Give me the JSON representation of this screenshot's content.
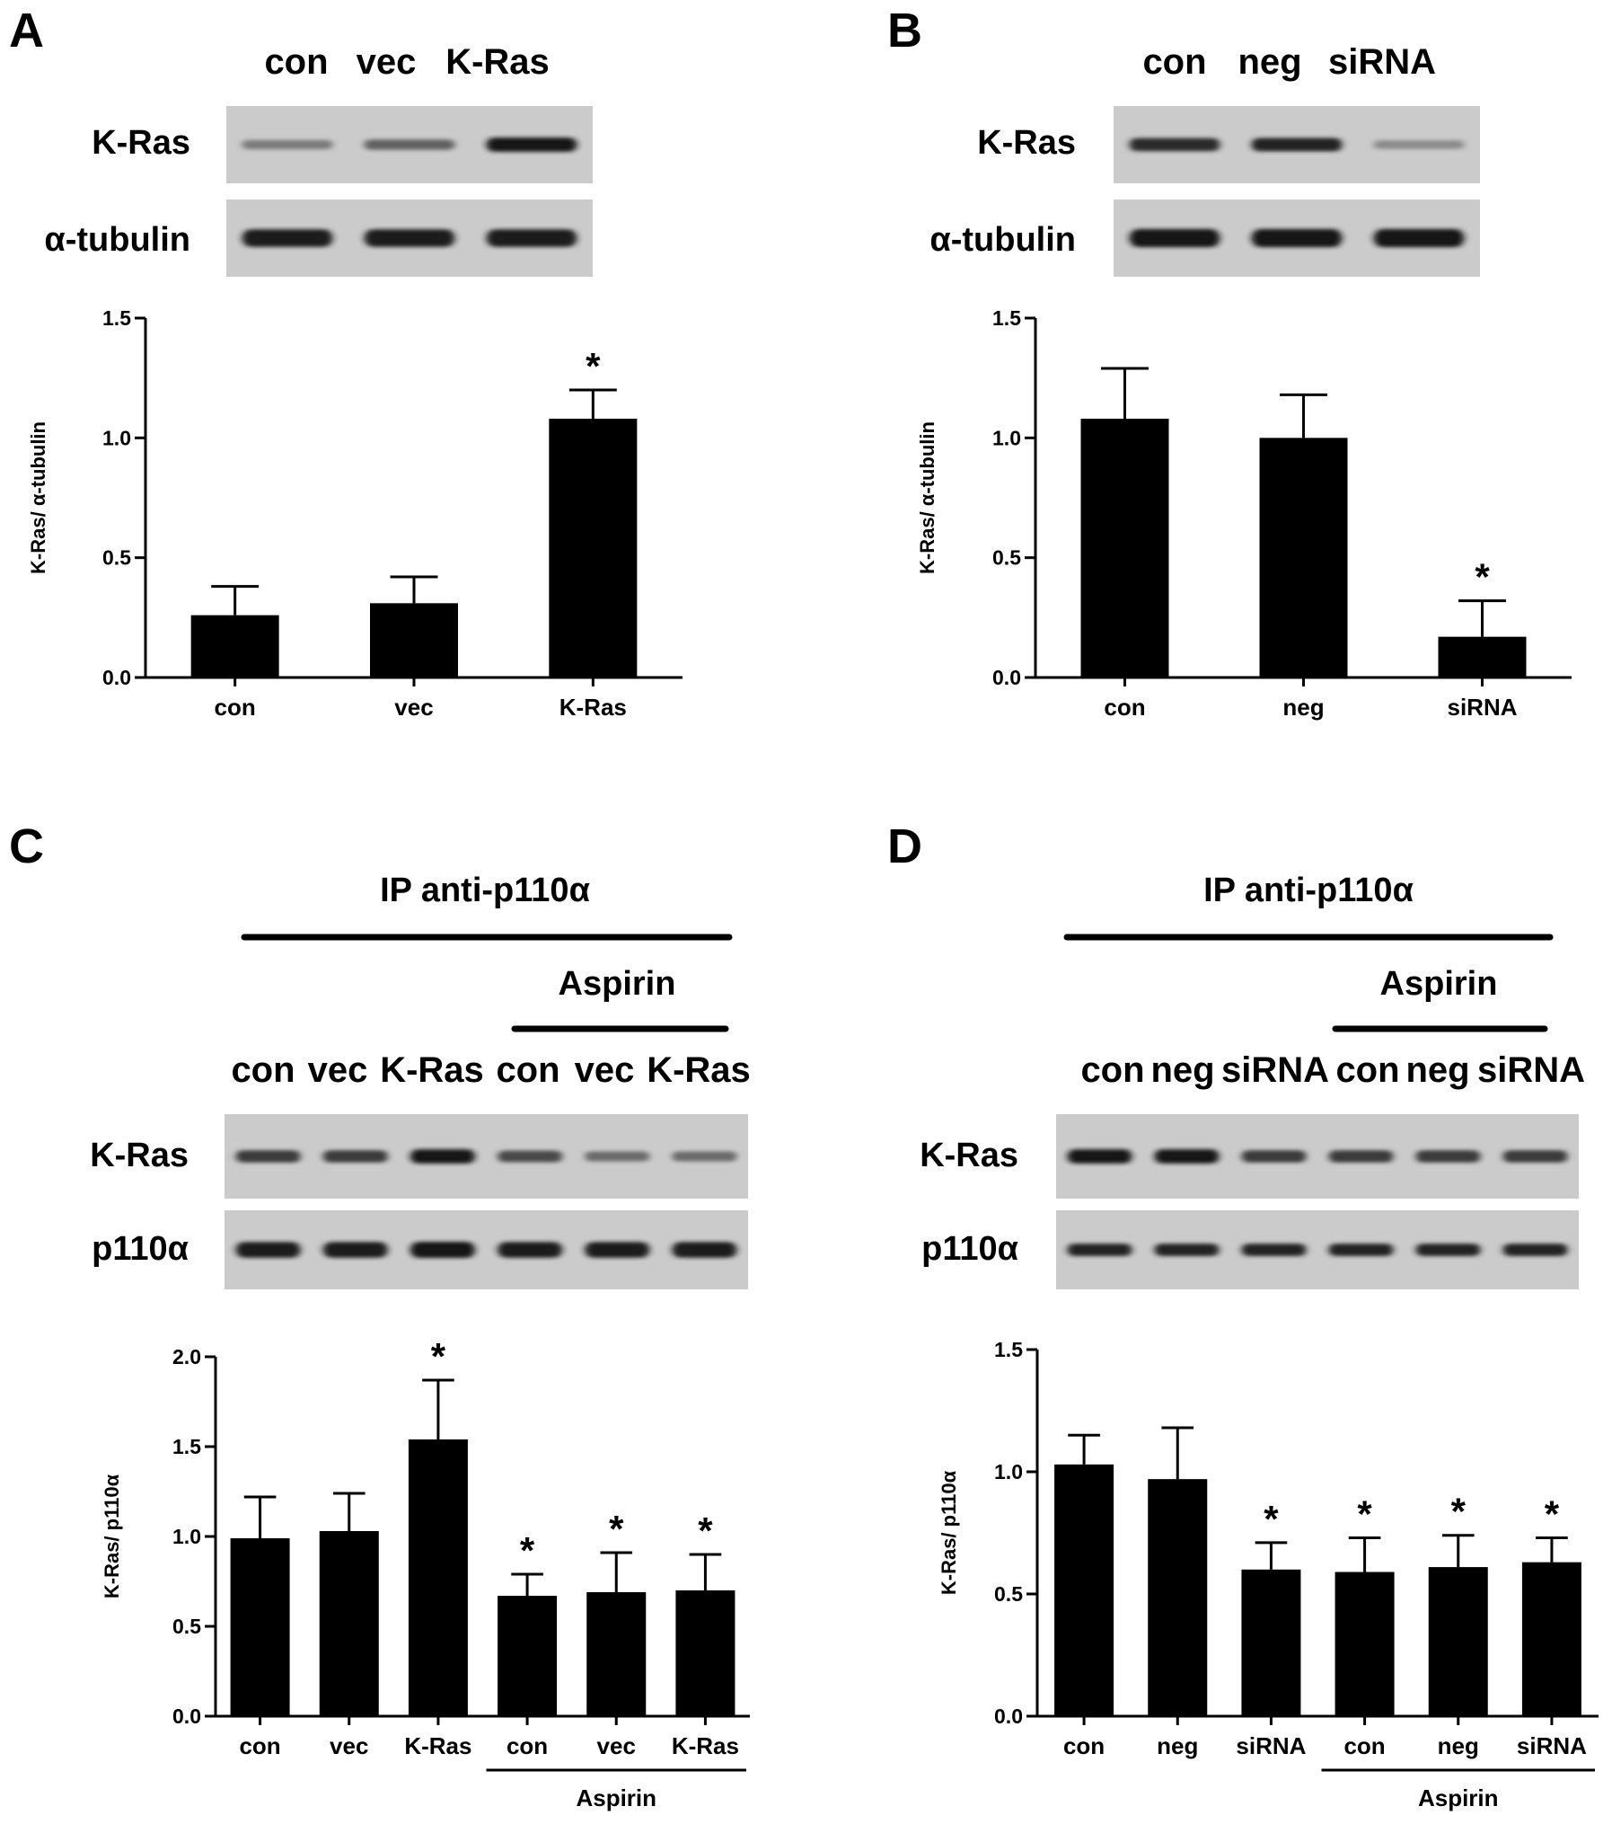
{
  "panels": [
    {
      "id": "A",
      "lanes": [
        "con",
        "vec",
        "K-Ras"
      ],
      "blots": [
        {
          "label": "K-Ras",
          "intensity": [
            0.3,
            0.45,
            0.95
          ]
        },
        {
          "label": "α-tubulin",
          "intensity": [
            0.9,
            0.9,
            0.9
          ]
        }
      ]
    },
    {
      "id": "B",
      "lanes": [
        "con",
        "neg",
        "siRNA"
      ],
      "blots": [
        {
          "label": "K-Ras",
          "intensity": [
            0.8,
            0.85,
            0.2
          ]
        },
        {
          "label": "α-tubulin",
          "intensity": [
            0.95,
            0.95,
            0.95
          ]
        }
      ]
    },
    {
      "id": "C",
      "header": "IP anti-p110α",
      "subheader": "Aspirin",
      "lanes": [
        "con",
        "vec",
        "K-Ras",
        "con",
        "vec",
        "K-Ras"
      ],
      "blots": [
        {
          "label": "K-Ras",
          "intensity": [
            0.7,
            0.7,
            0.95,
            0.6,
            0.4,
            0.4
          ]
        },
        {
          "label": "p110α",
          "intensity": [
            0.9,
            0.9,
            0.95,
            0.9,
            0.9,
            0.9
          ]
        }
      ]
    },
    {
      "id": "D",
      "header": "IP anti-p110α",
      "subheader": "Aspirin",
      "lanes": [
        "con",
        "neg",
        "siRNA",
        "con",
        "neg",
        "siRNA"
      ],
      "blots": [
        {
          "label": "K-Ras",
          "intensity": [
            0.95,
            0.95,
            0.7,
            0.7,
            0.7,
            0.7
          ]
        },
        {
          "label": "p110α",
          "intensity": [
            0.85,
            0.85,
            0.85,
            0.85,
            0.85,
            0.85
          ]
        }
      ]
    }
  ],
  "chart_data": [
    {
      "panel": "A",
      "type": "bar",
      "categories": [
        "con",
        "vec",
        "K-Ras"
      ],
      "values": [
        0.26,
        0.31,
        1.08
      ],
      "errors": [
        0.12,
        0.11,
        0.12
      ],
      "significant": [
        false,
        false,
        true
      ],
      "ylabel": "K-Ras/ α-tubulin",
      "ylim": [
        0,
        1.5
      ],
      "yticks": [
        "0.0",
        "0.5",
        "1.0",
        "1.5"
      ],
      "annotation_symbol": "*",
      "group_label": ""
    },
    {
      "panel": "B",
      "type": "bar",
      "categories": [
        "con",
        "neg",
        "siRNA"
      ],
      "values": [
        1.08,
        1.0,
        0.17
      ],
      "errors": [
        0.21,
        0.18,
        0.15
      ],
      "significant": [
        false,
        false,
        true
      ],
      "ylabel": "K-Ras/ α-tubulin",
      "ylim": [
        0,
        1.5
      ],
      "yticks": [
        "0.0",
        "0.5",
        "1.0",
        "1.5"
      ],
      "annotation_symbol": "*",
      "group_label": ""
    },
    {
      "panel": "C",
      "type": "bar",
      "categories": [
        "con",
        "vec",
        "K-Ras",
        "con",
        "vec",
        "K-Ras"
      ],
      "values": [
        0.99,
        1.03,
        1.54,
        0.67,
        0.69,
        0.7
      ],
      "errors": [
        0.23,
        0.21,
        0.33,
        0.12,
        0.22,
        0.2
      ],
      "significant": [
        false,
        false,
        true,
        true,
        true,
        true
      ],
      "ylabel": "K-Ras/ p110α",
      "ylim": [
        0,
        2.0
      ],
      "yticks": [
        "0.0",
        "0.5",
        "1.0",
        "1.5",
        "2.0"
      ],
      "annotation_symbol": "*",
      "group_label": "Aspirin"
    },
    {
      "panel": "D",
      "type": "bar",
      "categories": [
        "con",
        "neg",
        "siRNA",
        "con",
        "neg",
        "siRNA"
      ],
      "values": [
        1.03,
        0.97,
        0.6,
        0.59,
        0.61,
        0.63
      ],
      "errors": [
        0.12,
        0.21,
        0.11,
        0.14,
        0.13,
        0.1
      ],
      "significant": [
        false,
        false,
        true,
        true,
        true,
        true
      ],
      "ylabel": "K-Ras/ p110α",
      "ylim": [
        0,
        1.5
      ],
      "yticks": [
        "0.0",
        "0.5",
        "1.0",
        "1.5"
      ],
      "annotation_symbol": "*",
      "group_label": "Aspirin"
    }
  ]
}
